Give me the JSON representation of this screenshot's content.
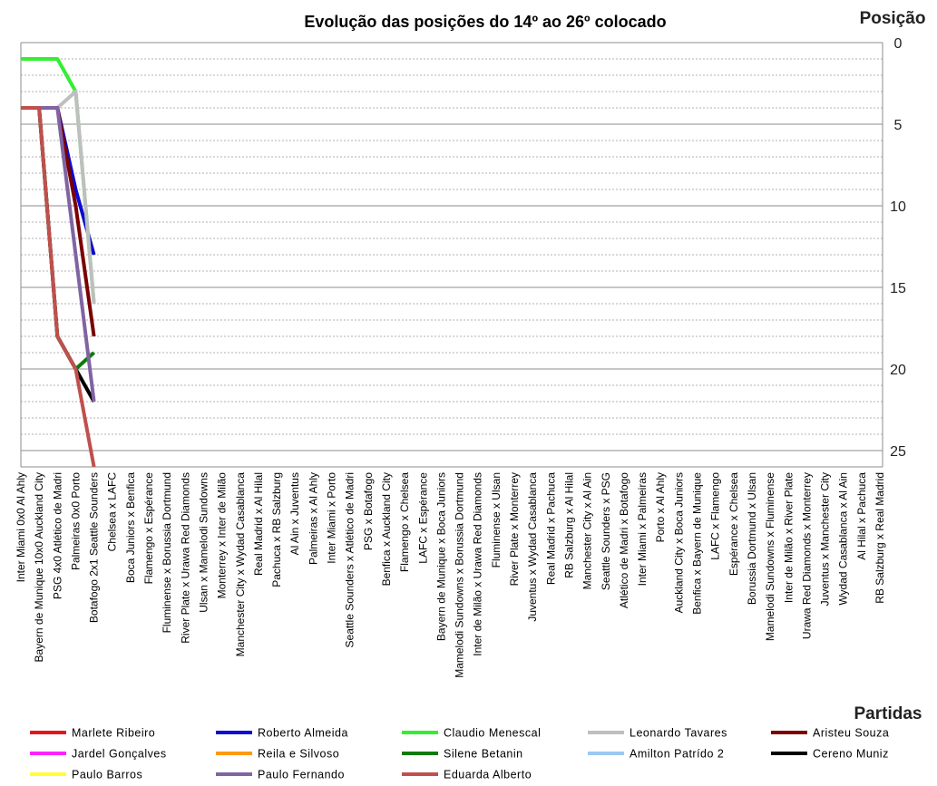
{
  "chart_data": {
    "type": "line",
    "title": "Evolução das posições do 14º ao 26º colocado",
    "y_axis_title": "Posição",
    "x_axis_title": "Partidas",
    "inverted_y": true,
    "grid": true,
    "legend": "bottom",
    "ylim": [
      0,
      26
    ],
    "yticks": [
      0,
      5,
      10,
      15,
      20,
      25
    ],
    "categories": [
      "Inter Miami 0x0 Al Ahly",
      "Bayern de Munique 10x0 Auckland City",
      "PSG 4x0 Atlético de Madri",
      "Palmeiras 0x0 Porto",
      "Botafogo 2x1 Seattle Sounders",
      "Chelsea x LAFC",
      "Boca Juniors x Benfica",
      "Flamengo x Espérance",
      "Fluminense x Borussia Dortmund",
      "River Plate x Urawa Red Diamonds",
      "Ulsan x Mamelodi Sundowns",
      "Monterrey x Inter de Milão",
      "Manchester City x Wydad Casablanca",
      "Real Madrid x Al Hilal",
      "Pachuca x RB Salzburg",
      "Al Ain x Juventus",
      "Palmeiras x Al Ahly",
      "Inter Miami x Porto",
      "Seattle Sounders x Atlético de Madri",
      "PSG x Botafogo",
      "Benfica x Auckland City",
      "Flamengo x Chelsea",
      "LAFC x Espérance",
      "Bayern de Munique x Boca Juniors",
      "Mamelodi Sundowns x Borussia Dortmund",
      "Inter de Milão x Urawa Red Diamonds",
      "Fluminense x Ulsan",
      "River Plate x Monterrey",
      "Juventus x Wydad Casablanca",
      "Real Madrid x Pachuca",
      "RB Salzburg x Al Hilal",
      "Manchester City x Al Ain",
      "Seattle Sounders x PSG",
      "Atlético de Madri x Botafogo",
      "Inter Miami x Palmeiras",
      "Porto x Al Ahly",
      "Auckland City x Boca Juniors",
      "Benfica x Bayern de Munique",
      "LAFC x Flamengo",
      "Espérance x Chelsea",
      "Borussia Dortmund x Ulsan",
      "Mamelodi Sundowns x Fluminense",
      "Inter de Milão x River Plate",
      "Urawa Red Diamonds x Monterrey",
      "Juventus x Manchester City",
      "Wydad Casablanca x Al Ain",
      "Al Hilal x Pachuca",
      "RB Salzburg x Real Madrid"
    ],
    "series": [
      {
        "name": "Marlete Ribeiro",
        "color": "#e8141c",
        "values": [
          null,
          null,
          null,
          null,
          null,
          null,
          null,
          null,
          null,
          null,
          null,
          null,
          null,
          null,
          null,
          null,
          null,
          null,
          null,
          null,
          null,
          null,
          null,
          null,
          null,
          null,
          null,
          null,
          null,
          null,
          null,
          null,
          null,
          null,
          null,
          null,
          null,
          null,
          null,
          null,
          null,
          null,
          null,
          null,
          null,
          null,
          null,
          null
        ]
      },
      {
        "name": "Roberto Almeida",
        "color": "#0a0ad2",
        "values": [
          4,
          4,
          4,
          9,
          13,
          null,
          null,
          null,
          null,
          null,
          null,
          null,
          null,
          null,
          null,
          null,
          null,
          null,
          null,
          null,
          null,
          null,
          null,
          null,
          null,
          null,
          null,
          null,
          null,
          null,
          null,
          null,
          null,
          null,
          null,
          null,
          null,
          null,
          null,
          null,
          null,
          null,
          null,
          null,
          null,
          null,
          null,
          null
        ]
      },
      {
        "name": "Claudio Menescal",
        "color": "#33ee33",
        "values": [
          1,
          1,
          1,
          3,
          16,
          null,
          null,
          null,
          null,
          null,
          null,
          null,
          null,
          null,
          null,
          null,
          null,
          null,
          null,
          null,
          null,
          null,
          null,
          null,
          null,
          null,
          null,
          null,
          null,
          null,
          null,
          null,
          null,
          null,
          null,
          null,
          null,
          null,
          null,
          null,
          null,
          null,
          null,
          null,
          null,
          null,
          null,
          null
        ]
      },
      {
        "name": "Leonardo Tavares",
        "color": "#bfbfbf",
        "values": [
          4,
          4,
          4,
          3,
          16,
          null,
          null,
          null,
          null,
          null,
          null,
          null,
          null,
          null,
          null,
          null,
          null,
          null,
          null,
          null,
          null,
          null,
          null,
          null,
          null,
          null,
          null,
          null,
          null,
          null,
          null,
          null,
          null,
          null,
          null,
          null,
          null,
          null,
          null,
          null,
          null,
          null,
          null,
          null,
          null,
          null,
          null,
          null
        ]
      },
      {
        "name": "Aristeu Souza",
        "color": "#7b0000",
        "values": [
          4,
          4,
          4,
          10,
          18,
          null,
          null,
          null,
          null,
          null,
          null,
          null,
          null,
          null,
          null,
          null,
          null,
          null,
          null,
          null,
          null,
          null,
          null,
          null,
          null,
          null,
          null,
          null,
          null,
          null,
          null,
          null,
          null,
          null,
          null,
          null,
          null,
          null,
          null,
          null,
          null,
          null,
          null,
          null,
          null,
          null,
          null,
          null
        ]
      },
      {
        "name": "Jardel Gonçalves",
        "color": "#ff22ff",
        "values": [
          null,
          null,
          null,
          null,
          null,
          null,
          null,
          null,
          null,
          null,
          null,
          null,
          null,
          null,
          null,
          null,
          null,
          null,
          null,
          null,
          null,
          null,
          null,
          null,
          null,
          null,
          null,
          null,
          null,
          null,
          null,
          null,
          null,
          null,
          null,
          null,
          null,
          null,
          null,
          null,
          null,
          null,
          null,
          null,
          null,
          null,
          null,
          null
        ]
      },
      {
        "name": "Reila e Silvoso",
        "color": "#ff9a10",
        "values": [
          null,
          null,
          null,
          null,
          null,
          null,
          null,
          null,
          null,
          null,
          null,
          null,
          null,
          null,
          null,
          null,
          null,
          null,
          null,
          null,
          null,
          null,
          null,
          null,
          null,
          null,
          null,
          null,
          null,
          null,
          null,
          null,
          null,
          null,
          null,
          null,
          null,
          null,
          null,
          null,
          null,
          null,
          null,
          null,
          null,
          null,
          null,
          null
        ]
      },
      {
        "name": "Silene Betanin",
        "color": "#0c7a0c",
        "values": [
          4,
          4,
          18,
          20,
          19,
          null,
          null,
          null,
          null,
          null,
          null,
          null,
          null,
          null,
          null,
          null,
          null,
          null,
          null,
          null,
          null,
          null,
          null,
          null,
          null,
          null,
          null,
          null,
          null,
          null,
          null,
          null,
          null,
          null,
          null,
          null,
          null,
          null,
          null,
          null,
          null,
          null,
          null,
          null,
          null,
          null,
          null,
          null
        ]
      },
      {
        "name": "Amilton Patrído 2",
        "color": "#9cc8f4",
        "values": [
          null,
          null,
          null,
          null,
          null,
          null,
          null,
          null,
          null,
          null,
          null,
          null,
          null,
          null,
          null,
          null,
          null,
          null,
          null,
          null,
          null,
          null,
          null,
          null,
          null,
          null,
          null,
          null,
          null,
          null,
          null,
          null,
          null,
          null,
          null,
          null,
          null,
          null,
          null,
          null,
          null,
          null,
          null,
          null,
          null,
          null,
          null,
          null
        ]
      },
      {
        "name": "Cereno Muniz",
        "color": "#000000",
        "values": [
          4,
          4,
          18,
          20,
          22,
          null,
          null,
          null,
          null,
          null,
          null,
          null,
          null,
          null,
          null,
          null,
          null,
          null,
          null,
          null,
          null,
          null,
          null,
          null,
          null,
          null,
          null,
          null,
          null,
          null,
          null,
          null,
          null,
          null,
          null,
          null,
          null,
          null,
          null,
          null,
          null,
          null,
          null,
          null,
          null,
          null,
          null,
          null
        ]
      },
      {
        "name": "Paulo Barros",
        "color": "#ffff33",
        "values": [
          null,
          null,
          null,
          null,
          null,
          null,
          null,
          null,
          null,
          null,
          null,
          null,
          null,
          null,
          null,
          null,
          null,
          null,
          null,
          null,
          null,
          null,
          null,
          null,
          null,
          null,
          null,
          null,
          null,
          null,
          null,
          null,
          null,
          null,
          null,
          null,
          null,
          null,
          null,
          null,
          null,
          null,
          null,
          null,
          null,
          null,
          null,
          null
        ]
      },
      {
        "name": "Paulo Fernando",
        "color": "#8064a2",
        "values": [
          4,
          4,
          4,
          13,
          22,
          null,
          null,
          null,
          null,
          null,
          null,
          null,
          null,
          null,
          null,
          null,
          null,
          null,
          null,
          null,
          null,
          null,
          null,
          null,
          null,
          null,
          null,
          null,
          null,
          null,
          null,
          null,
          null,
          null,
          null,
          null,
          null,
          null,
          null,
          null,
          null,
          null,
          null,
          null,
          null,
          null,
          null,
          null
        ]
      },
      {
        "name": "Eduarda Alberto",
        "color": "#c0504d",
        "values": [
          4,
          4,
          18,
          20,
          26,
          null,
          null,
          null,
          null,
          null,
          null,
          null,
          null,
          null,
          null,
          null,
          null,
          null,
          null,
          null,
          null,
          null,
          null,
          null,
          null,
          null,
          null,
          null,
          null,
          null,
          null,
          null,
          null,
          null,
          null,
          null,
          null,
          null,
          null,
          null,
          null,
          null,
          null,
          null,
          null,
          null,
          null,
          null
        ]
      }
    ]
  }
}
